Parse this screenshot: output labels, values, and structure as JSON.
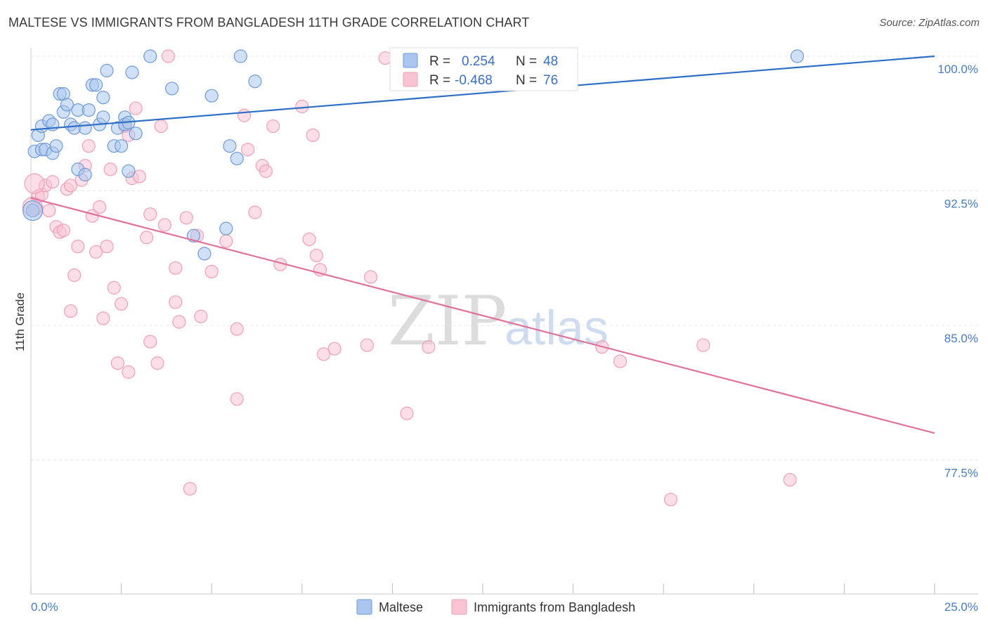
{
  "title": "MALTESE VS IMMIGRANTS FROM BANGLADESH 11TH GRADE CORRELATION CHART",
  "source": "Source: ZipAtlas.com",
  "watermark": {
    "zip": "ZIP",
    "atlas": "atlas"
  },
  "legend_top": {
    "rows": [
      {
        "r_label": "R =",
        "r_value": "0.254",
        "n_label": "N =",
        "n_value": "48",
        "color": "#a8c4ec"
      },
      {
        "r_label": "R =",
        "r_value": "-0.468",
        "n_label": "N =",
        "n_value": "76",
        "color": "#f4b6c9"
      }
    ]
  },
  "chart_data": {
    "type": "scatter",
    "ylabel": "11th Grade",
    "xlim": [
      0,
      25
    ],
    "ylim": [
      70,
      100
    ],
    "x_tick_labels": [
      "0.0%",
      "25.0%"
    ],
    "y_ticks": [
      {
        "value": 100,
        "label": "100.0%"
      },
      {
        "value": 92.5,
        "label": "92.5%"
      },
      {
        "value": 85,
        "label": "85.0%"
      },
      {
        "value": 77.5,
        "label": "77.5%"
      }
    ],
    "colors": {
      "blue_fill": "#aac6ee",
      "blue_stroke": "#6f9ad6",
      "blue_line": "#2f6fc6",
      "pink_fill": "#f8c3d3",
      "pink_stroke": "#ee9fb8",
      "pink_line": "#e0729b"
    },
    "series": [
      {
        "name": "Maltese",
        "trend": {
          "x": [
            0,
            25
          ],
          "y": [
            95.9,
            100.0
          ]
        },
        "points": [
          [
            0.1,
            94.7
          ],
          [
            0.2,
            95.6
          ],
          [
            0.3,
            94.8
          ],
          [
            0.3,
            96.1
          ],
          [
            0.5,
            96.4
          ],
          [
            0.4,
            94.8
          ],
          [
            0.6,
            94.6
          ],
          [
            0.6,
            96.2
          ],
          [
            0.7,
            95.0
          ],
          [
            0.8,
            97.9
          ],
          [
            0.9,
            97.9
          ],
          [
            0.9,
            96.9
          ],
          [
            1.0,
            97.3
          ],
          [
            1.1,
            96.2
          ],
          [
            1.2,
            96.0
          ],
          [
            1.3,
            93.7
          ],
          [
            1.3,
            97.0
          ],
          [
            1.5,
            96.0
          ],
          [
            1.5,
            93.4
          ],
          [
            1.6,
            97.0
          ],
          [
            1.7,
            98.4
          ],
          [
            1.8,
            98.4
          ],
          [
            1.9,
            96.2
          ],
          [
            2.0,
            96.6
          ],
          [
            2.0,
            97.7
          ],
          [
            2.1,
            99.2
          ],
          [
            2.3,
            95.0
          ],
          [
            2.4,
            96.0
          ],
          [
            2.5,
            95.0
          ],
          [
            2.6,
            96.6
          ],
          [
            2.6,
            96.2
          ],
          [
            2.7,
            96.3
          ],
          [
            2.7,
            93.6
          ],
          [
            2.8,
            99.1
          ],
          [
            2.9,
            95.7
          ],
          [
            3.3,
            100.0
          ],
          [
            3.9,
            98.2
          ],
          [
            4.5,
            90.0
          ],
          [
            4.8,
            89.0
          ],
          [
            5.0,
            97.8
          ],
          [
            5.4,
            90.4
          ],
          [
            5.5,
            95.0
          ],
          [
            5.7,
            94.3
          ],
          [
            5.8,
            100.0
          ],
          [
            6.2,
            98.6
          ],
          [
            0.05,
            91.4
          ],
          [
            0.05,
            91.4
          ],
          [
            21.2,
            100.0
          ]
        ]
      },
      {
        "name": "Immigrants from Bangladesh",
        "trend": {
          "x": [
            0,
            25
          ],
          "y": [
            92.1,
            79.0
          ]
        },
        "points": [
          [
            0.1,
            91.5
          ],
          [
            0.2,
            92.2
          ],
          [
            0.3,
            92.3
          ],
          [
            0.4,
            92.8
          ],
          [
            0.5,
            91.4
          ],
          [
            0.6,
            93.0
          ],
          [
            0.7,
            90.5
          ],
          [
            0.8,
            90.2
          ],
          [
            0.9,
            90.3
          ],
          [
            1.0,
            92.6
          ],
          [
            1.1,
            85.8
          ],
          [
            1.1,
            92.8
          ],
          [
            1.2,
            87.8
          ],
          [
            1.3,
            89.4
          ],
          [
            1.4,
            93.1
          ],
          [
            1.5,
            93.9
          ],
          [
            1.6,
            95.0
          ],
          [
            1.7,
            91.1
          ],
          [
            1.8,
            89.1
          ],
          [
            1.9,
            91.6
          ],
          [
            2.0,
            85.4
          ],
          [
            2.1,
            89.4
          ],
          [
            2.2,
            93.7
          ],
          [
            2.3,
            87.1
          ],
          [
            2.4,
            82.9
          ],
          [
            2.5,
            86.2
          ],
          [
            2.6,
            96.1
          ],
          [
            2.7,
            95.6
          ],
          [
            2.7,
            82.4
          ],
          [
            2.8,
            93.2
          ],
          [
            2.9,
            97.1
          ],
          [
            3.0,
            93.3
          ],
          [
            3.2,
            89.9
          ],
          [
            3.3,
            91.2
          ],
          [
            3.3,
            84.1
          ],
          [
            3.5,
            82.9
          ],
          [
            3.6,
            96.1
          ],
          [
            3.7,
            90.6
          ],
          [
            3.8,
            100.0
          ],
          [
            4.0,
            86.3
          ],
          [
            4.0,
            88.2
          ],
          [
            4.1,
            85.2
          ],
          [
            4.3,
            91.0
          ],
          [
            4.4,
            75.9
          ],
          [
            4.6,
            90.0
          ],
          [
            4.7,
            85.5
          ],
          [
            5.0,
            88.0
          ],
          [
            5.4,
            89.7
          ],
          [
            5.7,
            84.8
          ],
          [
            5.7,
            80.9
          ],
          [
            5.9,
            96.7
          ],
          [
            6.0,
            94.8
          ],
          [
            6.2,
            91.3
          ],
          [
            6.4,
            93.9
          ],
          [
            6.5,
            93.6
          ],
          [
            6.7,
            96.1
          ],
          [
            6.9,
            88.4
          ],
          [
            7.5,
            97.2
          ],
          [
            7.7,
            89.8
          ],
          [
            7.8,
            95.6
          ],
          [
            7.9,
            88.9
          ],
          [
            8.0,
            88.1
          ],
          [
            8.1,
            83.4
          ],
          [
            8.4,
            83.7
          ],
          [
            9.3,
            83.9
          ],
          [
            9.4,
            87.7
          ],
          [
            9.8,
            99.9
          ],
          [
            10.4,
            80.1
          ],
          [
            11.0,
            83.8
          ],
          [
            15.8,
            83.8
          ],
          [
            16.3,
            83.0
          ],
          [
            17.7,
            75.3
          ],
          [
            18.6,
            83.9
          ],
          [
            21.0,
            76.4
          ],
          [
            0.05,
            91.6
          ],
          [
            0.1,
            92.9
          ]
        ]
      }
    ]
  },
  "legend_bottom": [
    {
      "label": "Maltese",
      "color": "#aac6ee"
    },
    {
      "label": "Immigrants from Bangladesh",
      "color": "#f8c3d3"
    }
  ]
}
